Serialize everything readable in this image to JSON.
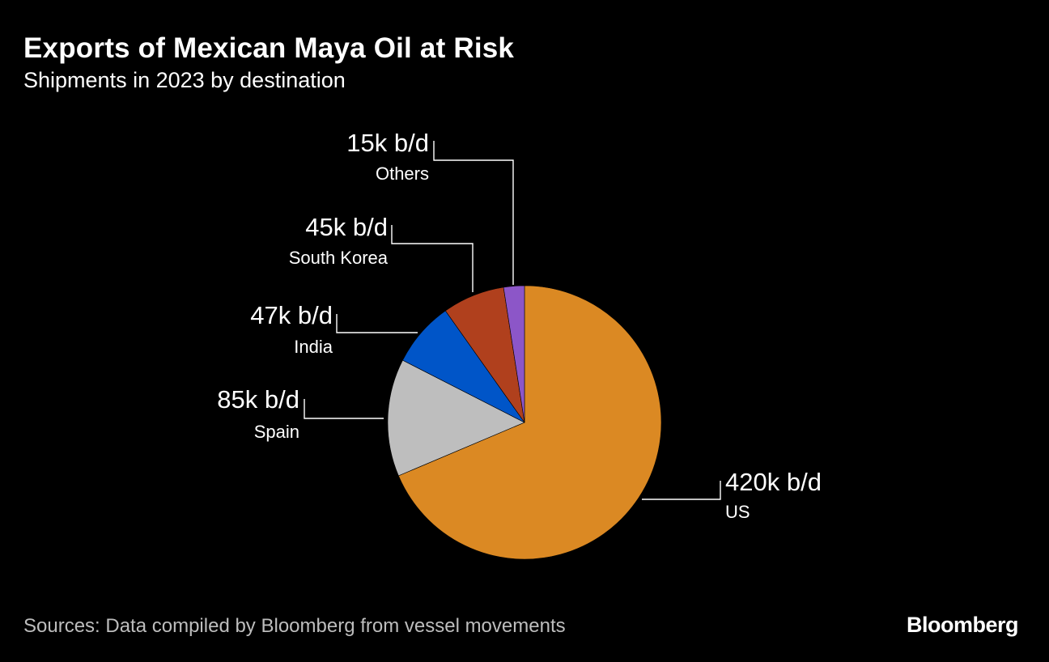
{
  "chart_data": {
    "type": "pie",
    "title": "Exports of Mexican Maya Oil at Risk",
    "subtitle": "Shipments in 2023 by destination",
    "unit": "k b/d",
    "slices": [
      {
        "label": "US",
        "value": 420,
        "value_label": "420k b/d",
        "color": "#db8923"
      },
      {
        "label": "Spain",
        "value": 85,
        "value_label": "85k b/d",
        "color": "#bebebe"
      },
      {
        "label": "India",
        "value": 47,
        "value_label": "47k b/d",
        "color": "#0055c8"
      },
      {
        "label": "South Korea",
        "value": 45,
        "value_label": "45k b/d",
        "color": "#b0401d"
      },
      {
        "label": "Others",
        "value": 15,
        "value_label": "15k b/d",
        "color": "#8c56c8"
      }
    ],
    "source": "Sources: Data compiled by Bloomberg from vessel movements"
  },
  "brand": "Bloomberg"
}
